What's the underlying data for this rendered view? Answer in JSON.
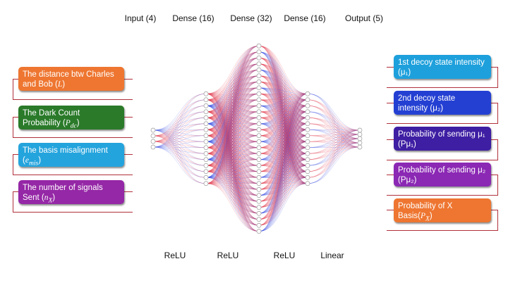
{
  "layers": [
    {
      "title": "Input (4)",
      "size": 4
    },
    {
      "title": "Dense (16)",
      "size": 16
    },
    {
      "title": "Dense (32)",
      "size": 32
    },
    {
      "title": "Dense (16)",
      "size": 16
    },
    {
      "title": "Output (5)",
      "size": 5
    }
  ],
  "activations": [
    "ReLU",
    "ReLU",
    "ReLU",
    "Linear"
  ],
  "inputs": [
    {
      "text": "The distance btw Charles and Bob (",
      "var": "L",
      "sub": "",
      "close": ")",
      "color": "#ee7631"
    },
    {
      "text": "The Dark Count Probability (",
      "var": "P",
      "sub": "dc",
      "close": ")",
      "color": "#2a7a2a"
    },
    {
      "text": "The basis misalignment (",
      "var": "e",
      "sub": "mis",
      "close": ")",
      "color": "#24a4dd"
    },
    {
      "text": "The number of signals Sent (",
      "var": "n",
      "sub": "X",
      "close": ")",
      "color": "#9528a6"
    }
  ],
  "outputs": [
    {
      "text": "1st decoy state intensity (μ₁)",
      "color": "#1ea0dc"
    },
    {
      "text": "2nd decoy state intensity (μ₂)",
      "color": "#2440d3"
    },
    {
      "text": "Probability of sending μ₁  (Pμ₁)",
      "color": "#3e1ea3"
    },
    {
      "text": "Probability of sending μ₂  (Pμ₂)",
      "color": "#8b28b4"
    },
    {
      "text": "Probability of X Basis(",
      "var": "P",
      "sub": "X",
      "close": ")",
      "color": "#ee7631"
    }
  ],
  "colors": {
    "edge_red": "#e0384c",
    "edge_blue": "#3a4fe0",
    "node_stroke": "#999999",
    "bracket": "#b0303a"
  }
}
